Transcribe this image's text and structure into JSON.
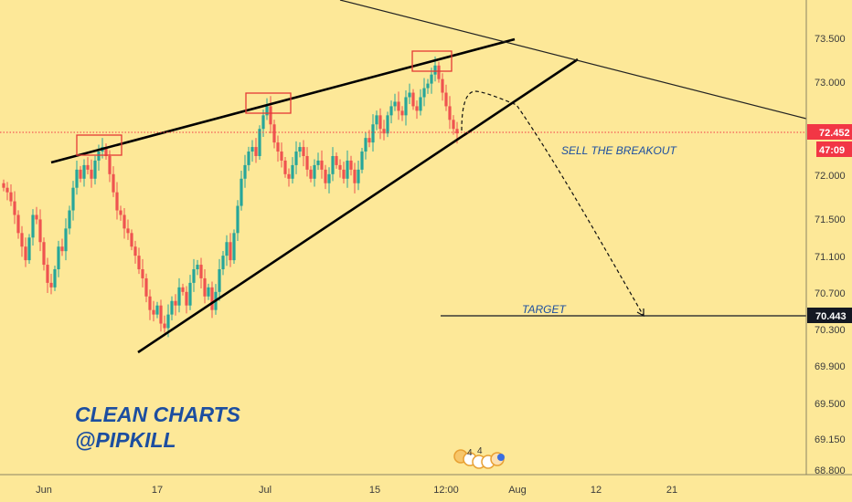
{
  "chart_data": {
    "type": "candlestick",
    "x_axis": {
      "ticks": [
        "Jun",
        "17",
        "Jul",
        "15",
        "12:00",
        "Aug",
        "12",
        "21"
      ]
    },
    "y_axis": {
      "ticks": [
        "73.500",
        "73.000",
        "72.500",
        "72.000",
        "71.500",
        "71.100",
        "70.700",
        "70.300",
        "69.900",
        "69.500",
        "69.150",
        "68.800"
      ],
      "range": [
        68.8,
        73.95
      ]
    },
    "current_price": {
      "value": "72.452",
      "countdown": "47:09",
      "color": "#f23645"
    },
    "target_price": {
      "value": "70.443",
      "color": "#131722"
    },
    "colors": {
      "up": "#26a69a",
      "down": "#ef5350",
      "background": "#fde898",
      "annotation_text": "#1c4ea0"
    },
    "candles_close": [
      71.85,
      71.8,
      71.7,
      71.55,
      71.35,
      71.2,
      71.05,
      71.3,
      71.55,
      71.5,
      71.25,
      71.0,
      70.8,
      70.75,
      70.95,
      71.2,
      71.15,
      71.4,
      71.6,
      71.85,
      72.05,
      71.95,
      72.1,
      72.05,
      71.95,
      72.15,
      72.25,
      72.3,
      72.2,
      72.0,
      71.8,
      71.6,
      71.55,
      71.4,
      71.35,
      71.2,
      71.1,
      70.95,
      70.85,
      70.65,
      70.5,
      70.45,
      70.55,
      70.35,
      70.3,
      70.45,
      70.6,
      70.55,
      70.75,
      70.7,
      70.55,
      70.8,
      70.95,
      71.0,
      70.85,
      70.65,
      70.75,
      70.5,
      70.7,
      70.95,
      71.1,
      71.25,
      71.05,
      71.35,
      71.65,
      71.95,
      72.1,
      72.25,
      72.3,
      72.2,
      72.5,
      72.65,
      72.75,
      72.55,
      72.35,
      72.25,
      72.15,
      72.0,
      71.95,
      72.1,
      72.25,
      72.3,
      72.2,
      72.05,
      71.95,
      72.1,
      72.15,
      72.05,
      71.9,
      72.0,
      72.2,
      72.1,
      72.05,
      71.95,
      72.15,
      72.05,
      71.9,
      72.05,
      72.25,
      72.4,
      72.35,
      72.55,
      72.65,
      72.5,
      72.45,
      72.65,
      72.75,
      72.8,
      72.7,
      72.65,
      72.85,
      72.9,
      72.75,
      72.7,
      72.85,
      72.95,
      73.0,
      73.1,
      73.2,
      73.05,
      72.9,
      72.75,
      72.6,
      72.5,
      72.45
    ],
    "annotations": {
      "sell_label": "SELL THE BREAKOUT",
      "target_label": "TARGET",
      "brand_line1": "CLEAN CHARTS",
      "brand_line2": "@PIPKILL"
    }
  },
  "event_markers": {
    "labels": [
      "4",
      "4"
    ]
  }
}
